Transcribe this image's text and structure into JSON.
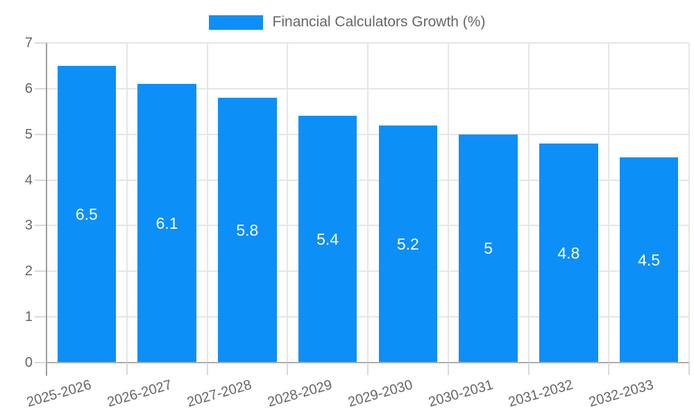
{
  "legend": {
    "label": "Financial Calculators Growth (%)"
  },
  "chart_data": {
    "type": "bar",
    "title": "Financial Calculators Growth (%)",
    "categories": [
      "2025-2026",
      "2026-2027",
      "2027-2028",
      "2028-2029",
      "2029-2030",
      "2030-2031",
      "2031-2032",
      "2032-2033"
    ],
    "values": [
      6.5,
      6.1,
      5.8,
      5.4,
      5.2,
      5,
      4.8,
      4.5
    ],
    "value_labels": [
      "6.5",
      "6.1",
      "5.8",
      "5.4",
      "5.2",
      "5",
      "4.8",
      "4.5"
    ],
    "xlabel": "",
    "ylabel": "",
    "ylim": [
      0,
      7
    ],
    "yticks": [
      0,
      1,
      2,
      3,
      4,
      5,
      6,
      7
    ],
    "grid": true,
    "legend_position": "top",
    "bar_color": "#0d8ff8",
    "value_label_color": "#ffffff",
    "grid_color": "#e6e6e6",
    "axis_color": "#9e9e9e",
    "tick_color": "#d9d9d9",
    "text_color": "#666666"
  }
}
